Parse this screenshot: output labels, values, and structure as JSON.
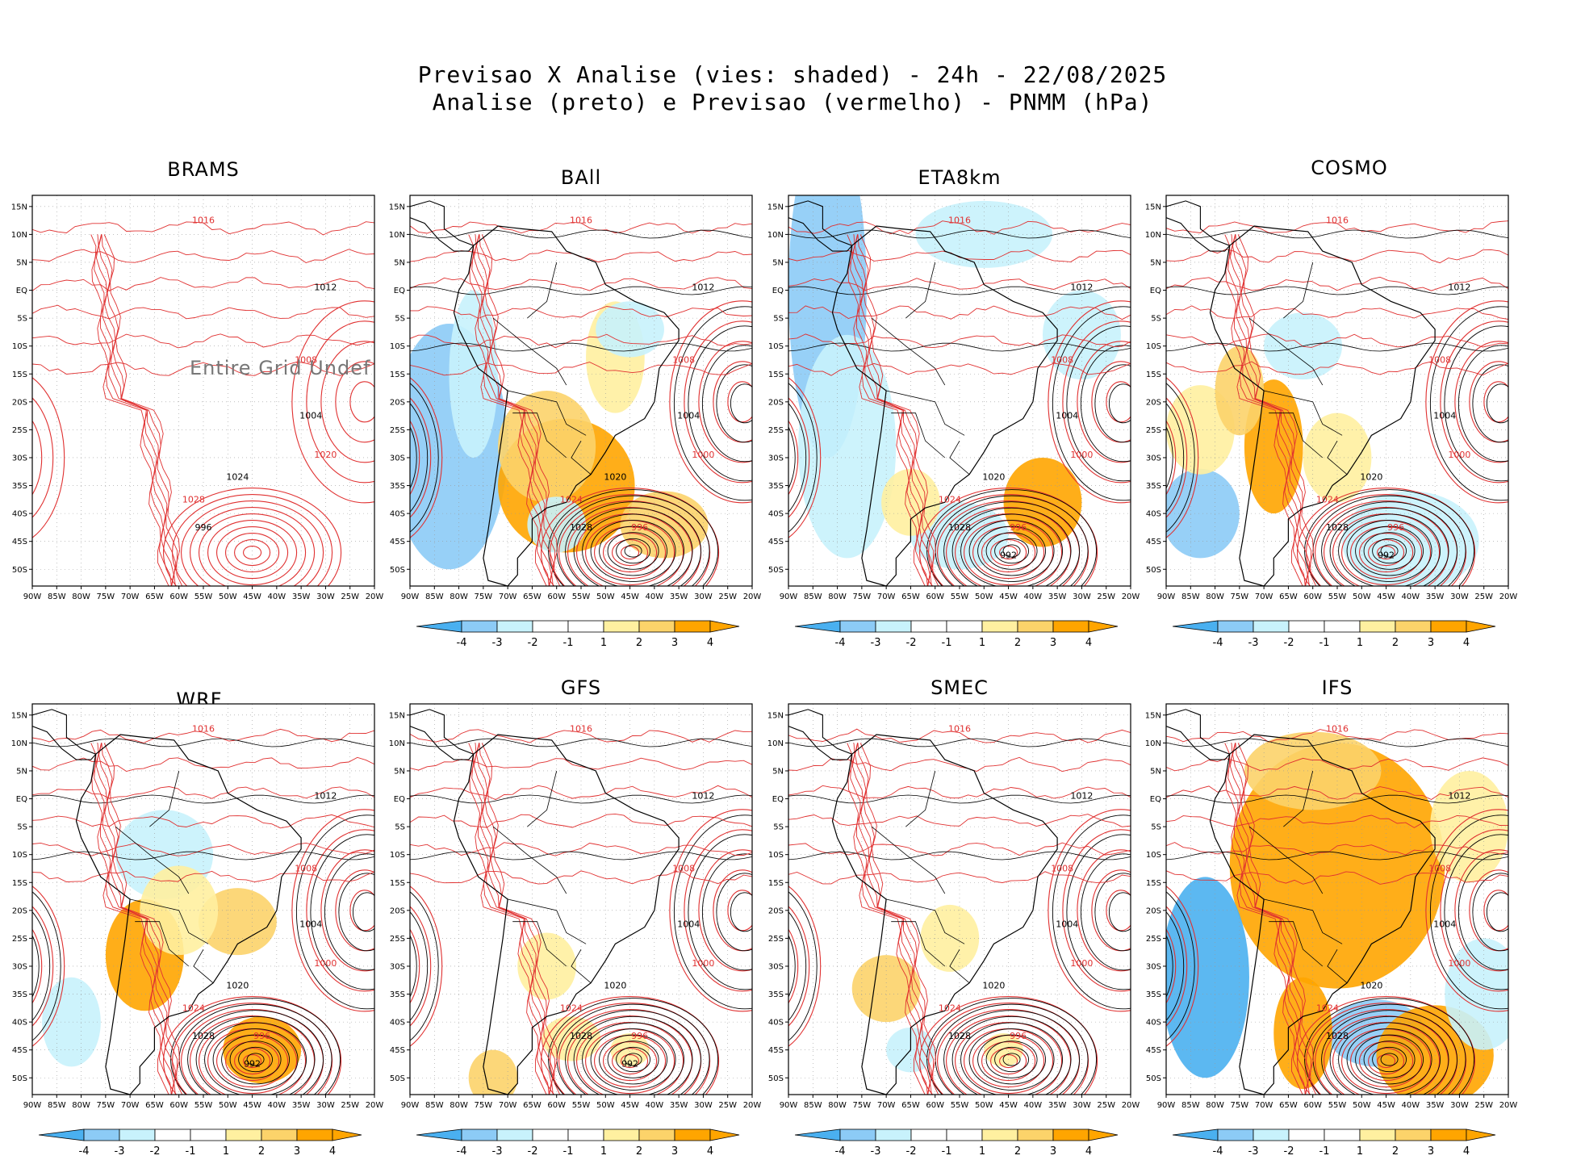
{
  "header": {
    "line1": "Previsao X Analise (vies: shaded) - 24h - 22/08/2025",
    "line2": "Analise (preto) e Previsao (vermelho) - PNMM (hPa)"
  },
  "colors": {
    "analysis_contour": "#000000",
    "forecast_contour": "#e03030",
    "neg4": "#4ab0f0",
    "neg3": "#8ccbf6",
    "neg2": "#c8f2fc",
    "neutral": "#ffffff",
    "pos2": "#fff0a0",
    "pos3": "#fcd36a",
    "pos4": "#ffa500"
  },
  "axes": {
    "lat_labels": [
      "15N",
      "10N",
      "5N",
      "EQ",
      "5S",
      "10S",
      "15S",
      "20S",
      "25S",
      "30S",
      "35S",
      "40S",
      "45S",
      "50S"
    ],
    "lon_labels": [
      "90W",
      "85W",
      "80W",
      "75W",
      "70W",
      "65W",
      "60W",
      "55W",
      "50W",
      "45W",
      "40W",
      "35W",
      "30W",
      "25W",
      "20W"
    ]
  },
  "colorbar": {
    "labels": [
      "-4",
      "-3",
      "-2",
      "-1",
      "1",
      "2",
      "3",
      "4"
    ]
  },
  "panels": [
    {
      "name": "BRAMS",
      "note": "Entire Grid Undef",
      "labels": [
        "1016",
        "1012",
        "1008",
        "1004",
        "1020",
        "1024",
        "1028",
        "996"
      ]
    },
    {
      "name": "BAll",
      "labels": [
        "1016",
        "1012",
        "1008",
        "1004",
        "1000",
        "1020",
        "1024",
        "1028",
        "996"
      ]
    },
    {
      "name": "ETA8km",
      "labels": [
        "1016",
        "1012",
        "1008",
        "1004",
        "1000",
        "1020",
        "1024",
        "1028",
        "996",
        "992"
      ]
    },
    {
      "name": "COSMO",
      "labels": [
        "1016",
        "1012",
        "1008",
        "1004",
        "1000",
        "1020",
        "1024",
        "1028",
        "996",
        "992"
      ]
    },
    {
      "name": "WRF",
      "labels": [
        "1016",
        "1012",
        "1008",
        "1004",
        "1000",
        "1020",
        "1024",
        "1028",
        "996",
        "992"
      ]
    },
    {
      "name": "GFS",
      "labels": [
        "1016",
        "1012",
        "1008",
        "1004",
        "1000",
        "1020",
        "1024",
        "1028",
        "996",
        "992"
      ]
    },
    {
      "name": "SMEC",
      "labels": [
        "1016",
        "1012",
        "1008",
        "1004",
        "1000",
        "1020",
        "1024",
        "1028",
        "996"
      ]
    },
    {
      "name": "IFS",
      "labels": [
        "1016",
        "1012",
        "1008",
        "1004",
        "1000",
        "1020",
        "1024",
        "1028"
      ]
    }
  ]
}
